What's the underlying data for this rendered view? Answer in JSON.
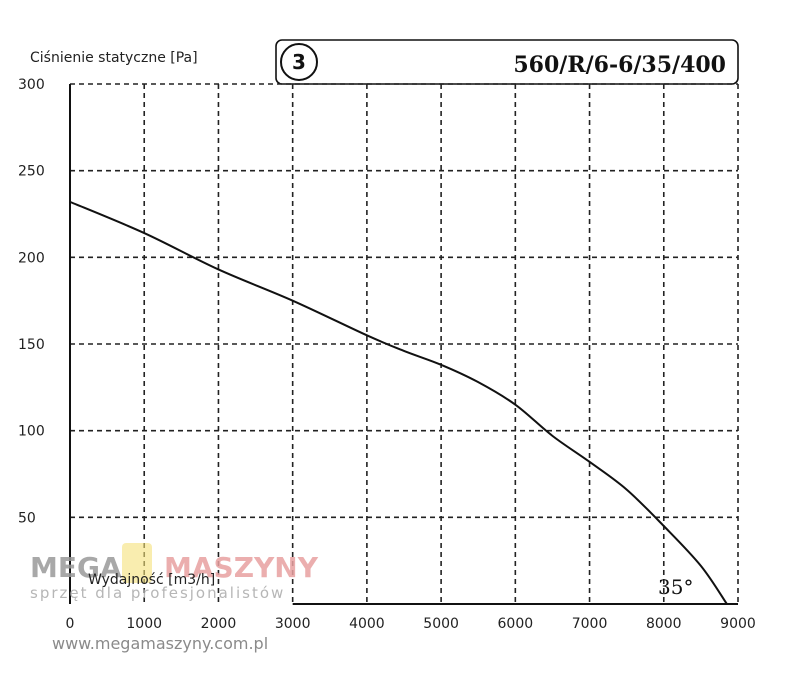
{
  "chart_data": {
    "type": "line",
    "ylabel": "Ciśnienie statyczne [Pa]",
    "xlabel": "Wydajność [m3/h]",
    "curve_number": "3",
    "model": "560/R/6-6/35/400",
    "blade_angle": "35°",
    "xlim": [
      0,
      9000
    ],
    "ylim": [
      0,
      300
    ],
    "xticks": [
      "0",
      "1000",
      "2000",
      "3000",
      "4000",
      "5000",
      "6000",
      "7000",
      "8000",
      "9000"
    ],
    "yticks": [
      "300",
      "250",
      "200",
      "150",
      "100",
      "50"
    ],
    "grid": true,
    "series": [
      {
        "x": [
          0,
          1000,
          2000,
          3000,
          4000,
          4500,
          5000,
          5500,
          6000,
          6500,
          7000,
          7500,
          8000,
          8500,
          8850
        ],
        "y": [
          232,
          214,
          193,
          175,
          155,
          146,
          138,
          128,
          115,
          97,
          82,
          66,
          45,
          22,
          0
        ]
      }
    ]
  },
  "watermark": {
    "brand_left": "MEGA",
    "brand_right": "MASZYNY",
    "tagline": "sprzęt dla profesjonalistów",
    "url": "www.megamaszyny.com.pl"
  },
  "colors": {
    "curve": "#111111",
    "grid": "#222222",
    "brand_left": "#9a9a9a",
    "brand_right": "#e8a0a0",
    "brand_yellow": "#f5e27a"
  }
}
